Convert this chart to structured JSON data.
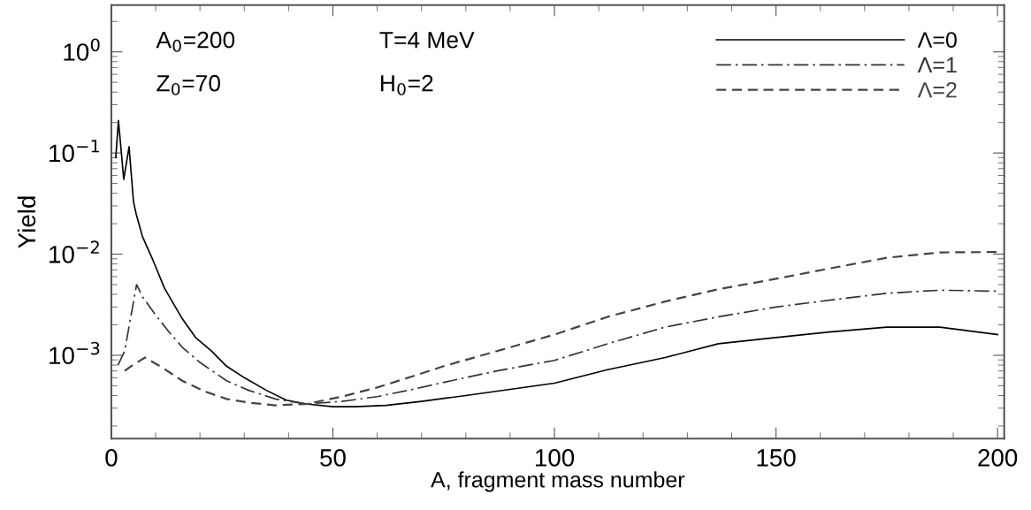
{
  "chart_data": {
    "type": "line",
    "xlabel": "A, fragment mass number",
    "ylabel": "Yield",
    "log": "y",
    "xlim": [
      0,
      201.5
    ],
    "ylim": [
      0.00015,
      2.9
    ],
    "xticks": [
      0,
      50,
      100,
      150,
      200
    ],
    "yticks": [
      {
        "value": 0.001,
        "label": "10$^{−3}$"
      },
      {
        "value": 0.01,
        "label": "10$^{−2}$"
      },
      {
        "value": 0.1,
        "label": "10$^{−1}$"
      },
      {
        "value": 1,
        "label": "10$^{0}$"
      }
    ],
    "grid": false,
    "legend": "top right",
    "annotations": [
      "A$_{0}$=200",
      "Z$_{0}$=70",
      "T=4 MeV",
      "H$_{0}$=2"
    ],
    "series": [
      {
        "name": "Λ=0",
        "color": "#000000",
        "line_style": "solid",
        "x": [
          1,
          1.6,
          2.8,
          4,
          5,
          5.6,
          7,
          9.4,
          12,
          16,
          19,
          22.6,
          26,
          30,
          35,
          39.5,
          44,
          50,
          55,
          62,
          70,
          80,
          90,
          100,
          112,
          125,
          137,
          150,
          162,
          175,
          187,
          200
        ],
        "values": [
          0.09,
          0.21,
          0.055,
          0.115,
          0.033,
          0.025,
          0.015,
          0.0087,
          0.0046,
          0.0023,
          0.0015,
          0.0011,
          0.00078,
          0.0006,
          0.00045,
          0.00036,
          0.00033,
          0.00031,
          0.00031,
          0.00032,
          0.00035,
          0.0004,
          0.00046,
          0.00053,
          0.00072,
          0.00095,
          0.0013,
          0.0015,
          0.0017,
          0.0019,
          0.0019,
          0.0016
        ]
      },
      {
        "name": "Λ=1",
        "color": "#333333",
        "line_style": "dashdot",
        "x": [
          1.5,
          3,
          5.7,
          7,
          10,
          13,
          16,
          20,
          26,
          31,
          37,
          44,
          52,
          60,
          68,
          75,
          87,
          100,
          112,
          125,
          137,
          150,
          162,
          175,
          187,
          200
        ],
        "values": [
          0.0008,
          0.0011,
          0.005,
          0.0038,
          0.0025,
          0.0017,
          0.0012,
          0.00085,
          0.00056,
          0.00045,
          0.00037,
          0.00033,
          0.00035,
          0.00039,
          0.00046,
          0.00054,
          0.0007,
          0.00089,
          0.0013,
          0.0019,
          0.0024,
          0.003,
          0.0035,
          0.0041,
          0.0044,
          0.0043
        ]
      },
      {
        "name": "Λ=2",
        "color": "#444444",
        "line_style": "dashed",
        "x": [
          3,
          5,
          7.6,
          11,
          16,
          21,
          26,
          31,
          37,
          44,
          52,
          60,
          68,
          75,
          87,
          100,
          112,
          125,
          137,
          150,
          162,
          175,
          187,
          200
        ],
        "values": [
          0.0007,
          0.00081,
          0.00095,
          0.00078,
          0.00056,
          0.00044,
          0.00037,
          0.00034,
          0.00032,
          0.00033,
          0.00039,
          0.00048,
          0.00062,
          0.00078,
          0.0011,
          0.0016,
          0.0024,
          0.0034,
          0.0045,
          0.0057,
          0.0072,
          0.0092,
          0.0104,
          0.0105
        ]
      }
    ]
  }
}
